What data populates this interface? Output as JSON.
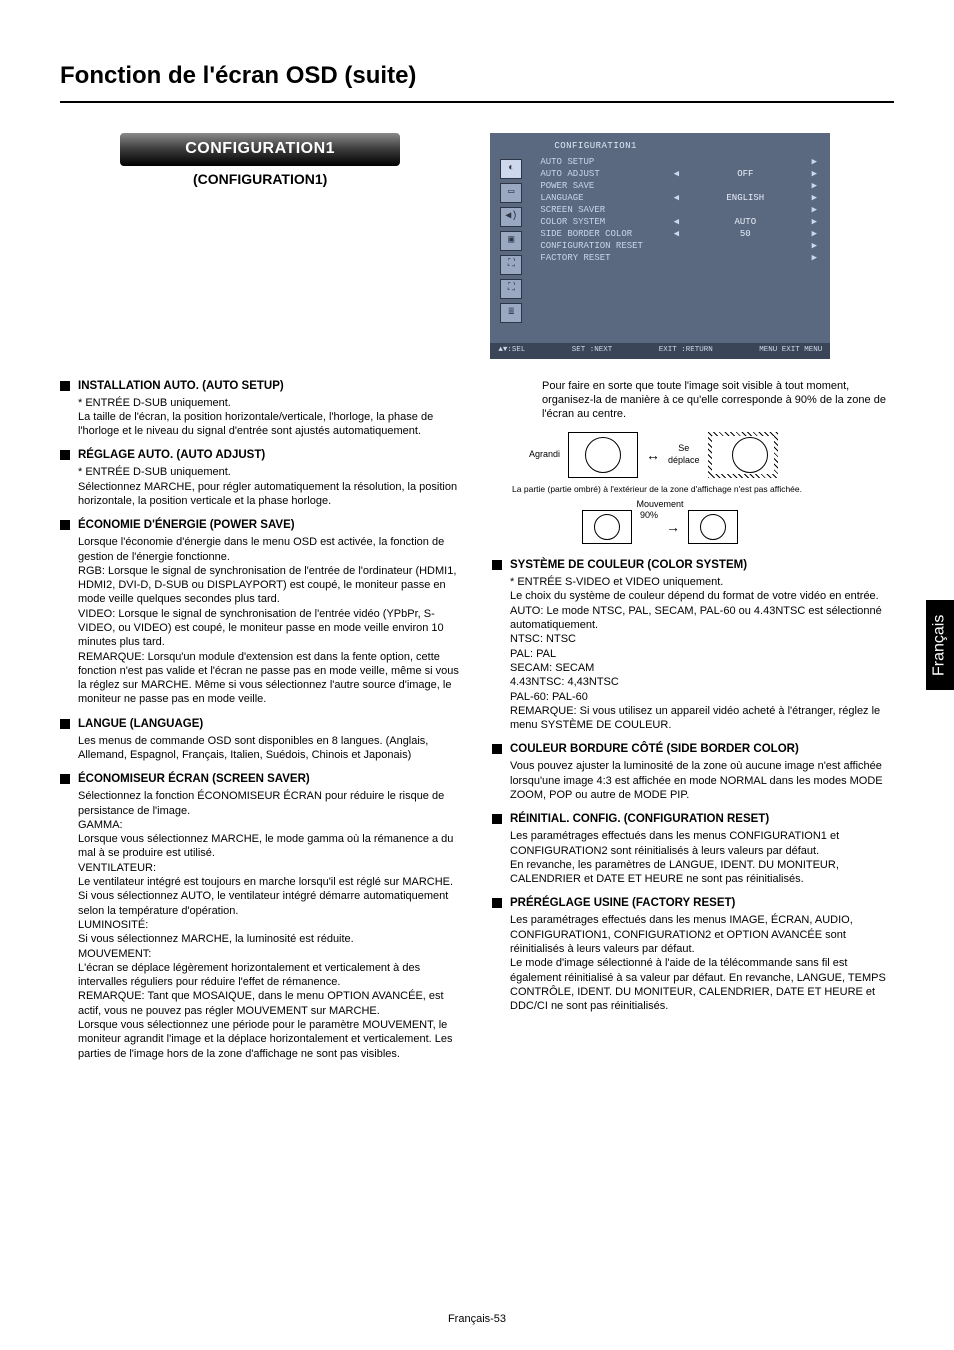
{
  "page": {
    "title": "Fonction de l'écran OSD (suite)",
    "footer": "Français-53",
    "lang_tab": "Français"
  },
  "badge": {
    "title": "CONFIGURATION1",
    "sub": "(CONFIGURATION1)"
  },
  "osd": {
    "title": "CONFIGURATION1",
    "rows": [
      {
        "label": "AUTO SETUP",
        "l": "",
        "val": "",
        "r": "▶"
      },
      {
        "label": "AUTO ADJUST",
        "l": "◀",
        "val": "OFF",
        "r": "▶"
      },
      {
        "label": "POWER SAVE",
        "l": "",
        "val": "",
        "r": "▶"
      },
      {
        "label": "LANGUAGE",
        "l": "◀",
        "val": "ENGLISH",
        "r": "▶"
      },
      {
        "label": "SCREEN SAVER",
        "l": "",
        "val": "",
        "r": "▶"
      },
      {
        "label": "COLOR SYSTEM",
        "l": "◀",
        "val": "AUTO",
        "r": "▶"
      },
      {
        "label": "SIDE BORDER COLOR",
        "l": "◀",
        "val": "50",
        "r": "▶"
      },
      {
        "label": "CONFIGURATION RESET",
        "l": "",
        "val": "",
        "r": "▶"
      },
      {
        "label": "FACTORY RESET",
        "l": "",
        "val": "",
        "r": "▶"
      }
    ],
    "footer": {
      "sel": "▲▼:SEL",
      "next": "SET :NEXT",
      "ret": "EXIT :RETURN",
      "exit": "MENU EXIT MENU"
    },
    "colors": {
      "bg": "#5a6980",
      "text": "#c8d4e8",
      "footer_bg": "#3b4558"
    }
  },
  "left_items": [
    {
      "head": "INSTALLATION AUTO. (AUTO SETUP)",
      "body": [
        "* ENTRÉE D-SUB uniquement.",
        "La taille de l'écran, la position horizontale/verticale, l'horloge, la phase de l'horloge et le niveau du signal d'entrée sont ajustés automatiquement."
      ]
    },
    {
      "head": "RÉGLAGE AUTO. (AUTO ADJUST)",
      "body": [
        "* ENTRÉE D-SUB uniquement.",
        "Sélectionnez MARCHE, pour régler automatiquement la résolution, la position horizontale, la position verticale et la phase horloge."
      ]
    },
    {
      "head": "ÉCONOMIE D'ÉNERGIE (POWER SAVE)",
      "body": [
        "Lorsque l'économie d'énergie dans le menu OSD est activée, la fonction de gestion de l'énergie fonctionne.",
        "RGB:      Lorsque le signal de synchronisation de l'entrée de l'ordinateur (HDMI1, HDMI2, DVI-D, D-SUB ou DISPLAYPORT) est coupé, le moniteur passe en mode veille quelques secondes plus tard.",
        "VIDEO:  Lorsque le signal de synchronisation de l'entrée vidéo (YPbPr, S-VIDEO, ou VIDEO) est coupé, le moniteur passe en mode veille environ 10 minutes plus tard.",
        "REMARQUE:  Lorsqu'un module d'extension est dans la fente option, cette fonction n'est pas valide et l'écran ne passe pas en mode veille, même si vous la réglez sur MARCHE. Même si vous sélectionnez l'autre source d'image, le moniteur ne passe pas en mode veille."
      ]
    },
    {
      "head": "LANGUE (LANGUAGE)",
      "body": [
        "Les menus de commande OSD sont disponibles en 8 langues. (Anglais, Allemand, Espagnol, Français, Italien, Suédois, Chinois et Japonais)"
      ]
    },
    {
      "head": "ÉCONOMISEUR ÉCRAN (SCREEN SAVER)",
      "body": [
        "Sélectionnez la fonction ÉCONOMISEUR ÉCRAN pour réduire le risque de persistance de l'image.",
        "GAMMA:",
        "Lorsque vous sélectionnez MARCHE, le mode gamma où la rémanence a du mal à se produire est utilisé.",
        "VENTILATEUR:",
        "Le ventilateur intégré est toujours en marche lorsqu'il est réglé sur MARCHE.",
        "Si vous sélectionnez AUTO, le ventilateur intégré démarre automatiquement selon la température d'opération.",
        "LUMINOSITÉ:",
        "Si vous sélectionnez MARCHE, la luminosité est réduite.",
        "MOUVEMENT:",
        "L'écran se déplace légèrement horizontalement et verticalement à des intervalles réguliers pour réduire l'effet de rémanence.",
        "REMARQUE:  Tant que MOSAIQUE, dans le menu OPTION AVANCÉE, est actif, vous ne pouvez pas régler MOUVEMENT sur MARCHE.",
        "Lorsque vous sélectionnez une période pour le paramètre MOUVEMENT, le moniteur agrandit l'image et la déplace horizontalement et verticalement. Les parties de l'image hors de la zone d'affichage ne sont pas visibles."
      ]
    }
  ],
  "right_intro": "Pour faire en sorte que toute l'image soit visible à tout moment, organisez-la de manière à ce qu'elle corresponde à 90% de la zone de l'écran au centre.",
  "diagram": {
    "agrandi": "Agrandi",
    "se_deplace": "Se\ndéplace",
    "outside": "La partie (partie ombré) à l'extérieur de la zone d'affichage n'est pas affichée.",
    "mouvement": "Mouvement",
    "ninety": "90%"
  },
  "right_items": [
    {
      "head": "SYSTÈME DE COULEUR (COLOR SYSTEM)",
      "body": [
        "* ENTRÉE S-VIDEO et VIDEO uniquement.",
        "Le choix du système de couleur dépend du format de votre vidéo en entrée.",
        "AUTO:        Le mode NTSC, PAL, SECAM, PAL-60 ou 4.43NTSC est sélectionné automatiquement.",
        "NTSC:        NTSC",
        "PAL:           PAL",
        "SECAM:    SECAM",
        "4.43NTSC: 4,43NTSC",
        "PAL-60:     PAL-60",
        "REMARQUE: Si vous utilisez un appareil vidéo acheté à l'étranger, réglez le menu SYSTÈME DE COULEUR."
      ]
    },
    {
      "head": "COULEUR BORDURE CÔTÉ (SIDE BORDER COLOR)",
      "body": [
        "Vous pouvez ajuster la luminosité de la zone où aucune image n'est affichée lorsqu'une image 4:3 est affichée en mode NORMAL dans les modes MODE ZOOM, POP ou autre de MODE PIP."
      ]
    },
    {
      "head": "RÉINITIAL. CONFIG. (CONFIGURATION RESET)",
      "body": [
        "Les paramétrages effectués dans les menus CONFIGURATION1 et CONFIGURATION2 sont réinitialisés à leurs valeurs par défaut.",
        "En revanche, les paramètres de LANGUE, IDENT. DU MONITEUR, CALENDRIER et DATE ET HEURE ne sont pas réinitialisés."
      ]
    },
    {
      "head": "PRÉRÉGLAGE USINE (FACTORY RESET)",
      "body": [
        "Les paramétrages effectués dans les menus IMAGE, ÉCRAN, AUDIO, CONFIGURATION1, CONFIGURATION2 et OPTION AVANCÉE sont réinitialisés à leurs valeurs par défaut.",
        "Le mode d'image sélectionné à l'aide de la télécommande sans fil est également réinitialisé à sa valeur par défaut. En revanche, LANGUE, TEMPS CONTRÔLE, IDENT. DU MONITEUR, CALENDRIER, DATE ET HEURE et DDC/CI ne sont pas réinitialisés."
      ]
    }
  ]
}
